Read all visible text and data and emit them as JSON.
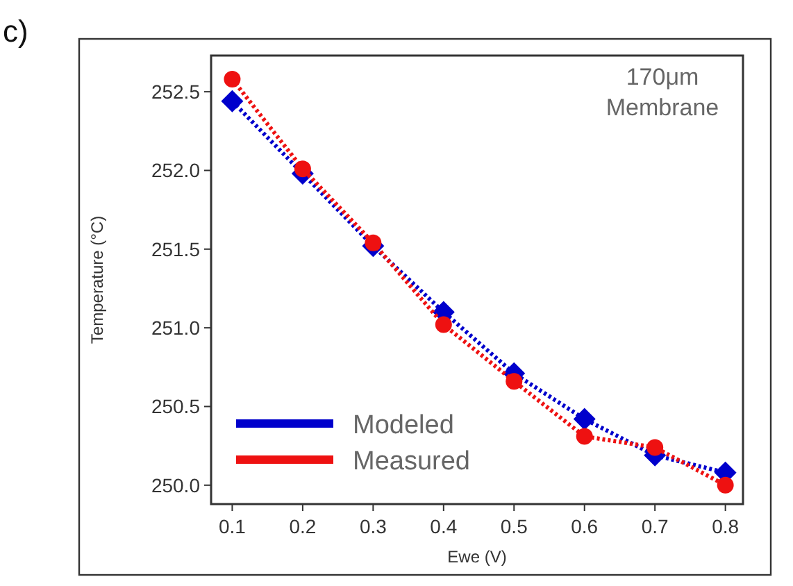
{
  "chart_data": {
    "type": "line",
    "xlabel": "Ewe (V)",
    "ylabel": "Temperature (°C)",
    "x": [
      0.1,
      0.2,
      0.3,
      0.4,
      0.5,
      0.6,
      0.7,
      0.8
    ],
    "series": [
      {
        "name": "Modeled",
        "color": "#0000cc",
        "marker": "diamond",
        "values": [
          252.44,
          251.98,
          251.52,
          251.1,
          250.71,
          250.42,
          250.19,
          250.08
        ]
      },
      {
        "name": "Measured",
        "color": "#ee1111",
        "marker": "circle",
        "values": [
          252.58,
          252.01,
          251.54,
          251.02,
          250.66,
          250.31,
          250.24,
          250.0
        ]
      }
    ],
    "xlim": [
      0.07,
      0.825
    ],
    "xticks": [
      0.1,
      0.2,
      0.3,
      0.4,
      0.5,
      0.6,
      0.7,
      0.8
    ],
    "ylim": [
      249.88,
      252.73
    ],
    "yticks": [
      {
        "value": 250,
        "label": "250.0"
      },
      250.5,
      {
        "value": 251,
        "label": "251.0"
      },
      251.5,
      {
        "value": 252,
        "label": "252.0"
      },
      252.5
    ],
    "line_style": "dotted",
    "legend": "bottom left",
    "grid": false,
    "annotations": [
      "c)",
      "170μm\nMembrane"
    ]
  }
}
